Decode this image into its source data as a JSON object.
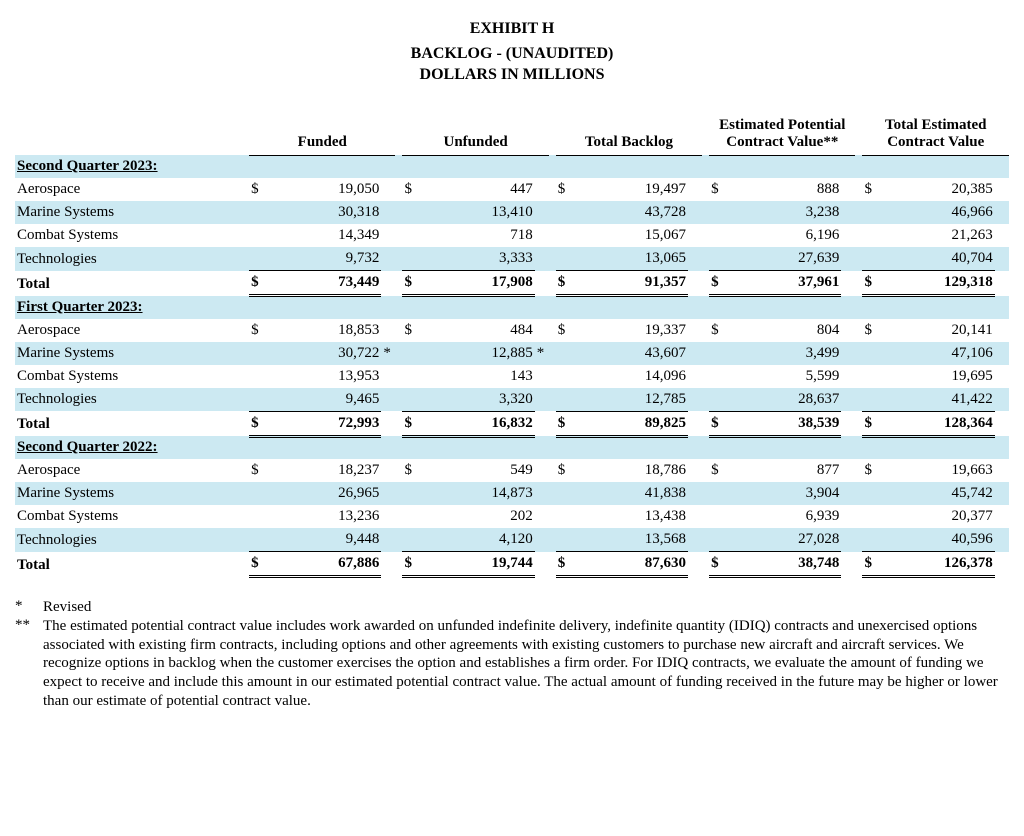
{
  "titles": {
    "exhibit": "EXHIBIT H",
    "line1": "BACKLOG - (UNAUDITED)",
    "line2": "DOLLARS IN MILLIONS"
  },
  "columns": [
    "Funded",
    "Unfunded",
    "Total Backlog",
    "Estimated Potential Contract Value**",
    "Total Estimated Contract Value"
  ],
  "sections": [
    {
      "title": "Second Quarter 2023:",
      "rows": [
        {
          "label": "Aerospace",
          "cur": "$",
          "v": [
            "19,050",
            "447",
            "19,497",
            "888",
            "20,385"
          ],
          "ast": [
            "",
            "",
            "",
            "",
            ""
          ]
        },
        {
          "label": "Marine Systems",
          "cur": "",
          "v": [
            "30,318",
            "13,410",
            "43,728",
            "3,238",
            "46,966"
          ],
          "ast": [
            "",
            "",
            "",
            "",
            ""
          ],
          "stripe": true
        },
        {
          "label": "Combat Systems",
          "cur": "",
          "v": [
            "14,349",
            "718",
            "15,067",
            "6,196",
            "21,263"
          ],
          "ast": [
            "",
            "",
            "",
            "",
            ""
          ]
        },
        {
          "label": "Technologies",
          "cur": "",
          "v": [
            "9,732",
            "3,333",
            "13,065",
            "27,639",
            "40,704"
          ],
          "ast": [
            "",
            "",
            "",
            "",
            ""
          ],
          "stripe": true
        }
      ],
      "total": {
        "label": "Total",
        "cur": "$",
        "v": [
          "73,449",
          "17,908",
          "91,357",
          "37,961",
          "129,318"
        ]
      }
    },
    {
      "title": "First Quarter 2023:",
      "rows": [
        {
          "label": "Aerospace",
          "cur": "$",
          "v": [
            "18,853",
            "484",
            "19,337",
            "804",
            "20,141"
          ],
          "ast": [
            "",
            "",
            "",
            "",
            ""
          ]
        },
        {
          "label": "Marine Systems",
          "cur": "",
          "v": [
            "30,722",
            "12,885",
            "43,607",
            "3,499",
            "47,106"
          ],
          "ast": [
            "*",
            "*",
            "",
            "",
            ""
          ],
          "stripe": true
        },
        {
          "label": "Combat Systems",
          "cur": "",
          "v": [
            "13,953",
            "143",
            "14,096",
            "5,599",
            "19,695"
          ],
          "ast": [
            "",
            "",
            "",
            "",
            ""
          ]
        },
        {
          "label": "Technologies",
          "cur": "",
          "v": [
            "9,465",
            "3,320",
            "12,785",
            "28,637",
            "41,422"
          ],
          "ast": [
            "",
            "",
            "",
            "",
            ""
          ],
          "stripe": true
        }
      ],
      "total": {
        "label": "Total",
        "cur": "$",
        "v": [
          "72,993",
          "16,832",
          "89,825",
          "38,539",
          "128,364"
        ]
      }
    },
    {
      "title": "Second Quarter 2022:",
      "rows": [
        {
          "label": "Aerospace",
          "cur": "$",
          "v": [
            "18,237",
            "549",
            "18,786",
            "877",
            "19,663"
          ],
          "ast": [
            "",
            "",
            "",
            "",
            ""
          ]
        },
        {
          "label": "Marine Systems",
          "cur": "",
          "v": [
            "26,965",
            "14,873",
            "41,838",
            "3,904",
            "45,742"
          ],
          "ast": [
            "",
            "",
            "",
            "",
            ""
          ],
          "stripe": true
        },
        {
          "label": "Combat Systems",
          "cur": "",
          "v": [
            "13,236",
            "202",
            "13,438",
            "6,939",
            "20,377"
          ],
          "ast": [
            "",
            "",
            "",
            "",
            ""
          ]
        },
        {
          "label": "Technologies",
          "cur": "",
          "v": [
            "9,448",
            "4,120",
            "13,568",
            "27,028",
            "40,596"
          ],
          "ast": [
            "",
            "",
            "",
            "",
            ""
          ],
          "stripe": true
        }
      ],
      "total": {
        "label": "Total",
        "cur": "$",
        "v": [
          "67,886",
          "19,744",
          "87,630",
          "38,748",
          "126,378"
        ]
      }
    }
  ],
  "footnotes": [
    {
      "mark": "*",
      "text": "Revised"
    },
    {
      "mark": "**",
      "text": "The estimated potential contract value includes work awarded on unfunded indefinite delivery, indefinite quantity (IDIQ) contracts and unexercised options associated with existing firm contracts, including options and other agreements with existing customers to purchase new aircraft and aircraft services. We recognize options in backlog when the customer exercises the option and establishes a firm order. For IDIQ contracts, we evaluate the amount of funding we expect to receive and include this amount in our estimated potential contract value. The actual amount of funding received in the future may be higher or lower than our estimate of potential contract value."
    }
  ]
}
